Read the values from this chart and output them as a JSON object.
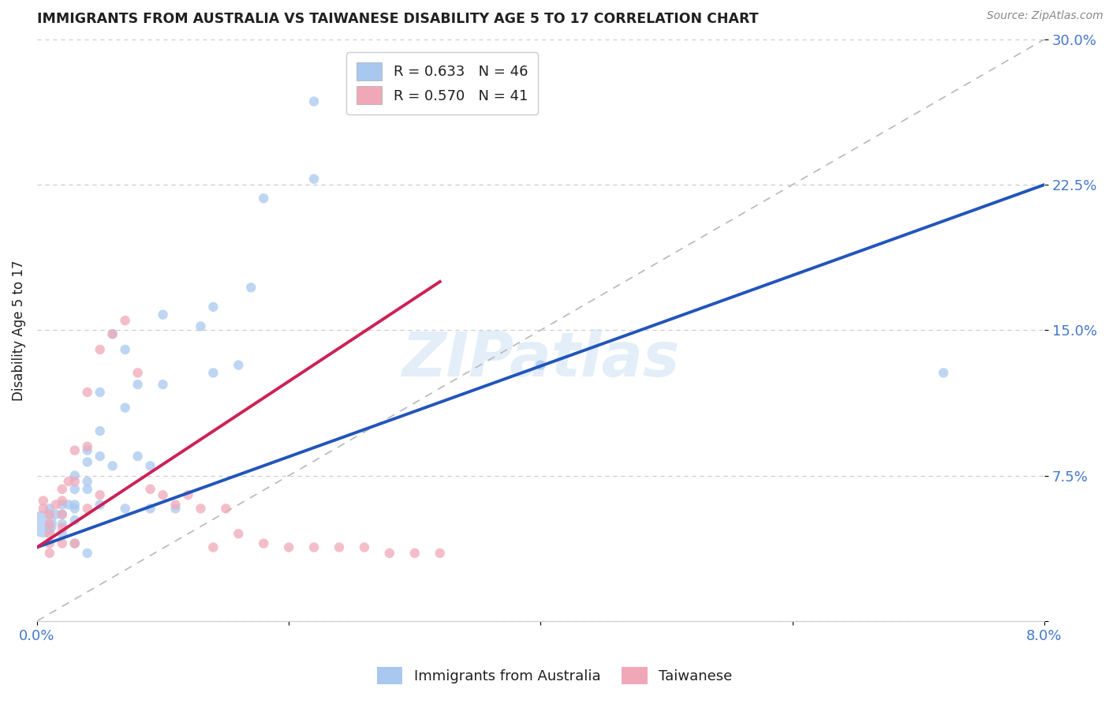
{
  "title": "IMMIGRANTS FROM AUSTRALIA VS TAIWANESE DISABILITY AGE 5 TO 17 CORRELATION CHART",
  "source": "Source: ZipAtlas.com",
  "ylabel": "Disability Age 5 to 17",
  "xlim": [
    0.0,
    0.08
  ],
  "ylim": [
    0.0,
    0.3
  ],
  "legend_r_blue": "R = 0.633",
  "legend_n_blue": "N = 46",
  "legend_r_pink": "R = 0.570",
  "legend_n_pink": "N = 41",
  "blue_color": "#a8c8f0",
  "pink_color": "#f0a8b8",
  "blue_line_color": "#2255bb",
  "pink_line_color": "#cc2255",
  "blue_line_x": [
    0.0,
    0.08
  ],
  "blue_line_y": [
    0.038,
    0.225
  ],
  "pink_line_x": [
    0.0,
    0.032
  ],
  "pink_line_y": [
    0.038,
    0.175
  ],
  "watermark": "ZIPatlas",
  "australia_x": [
    0.0005,
    0.001,
    0.001,
    0.0015,
    0.002,
    0.002,
    0.002,
    0.002,
    0.0025,
    0.003,
    0.003,
    0.003,
    0.003,
    0.003,
    0.003,
    0.004,
    0.004,
    0.004,
    0.004,
    0.004,
    0.005,
    0.005,
    0.005,
    0.005,
    0.006,
    0.006,
    0.007,
    0.007,
    0.007,
    0.008,
    0.008,
    0.009,
    0.009,
    0.01,
    0.01,
    0.011,
    0.013,
    0.014,
    0.014,
    0.016,
    0.017,
    0.018,
    0.022,
    0.022,
    0.04,
    0.072
  ],
  "australia_y": [
    0.05,
    0.048,
    0.058,
    0.055,
    0.06,
    0.05,
    0.055,
    0.045,
    0.06,
    0.075,
    0.068,
    0.058,
    0.06,
    0.052,
    0.04,
    0.088,
    0.082,
    0.068,
    0.072,
    0.035,
    0.118,
    0.098,
    0.085,
    0.06,
    0.148,
    0.08,
    0.14,
    0.11,
    0.058,
    0.122,
    0.085,
    0.08,
    0.058,
    0.158,
    0.122,
    0.058,
    0.152,
    0.162,
    0.128,
    0.132,
    0.172,
    0.218,
    0.228,
    0.268,
    0.132,
    0.128
  ],
  "australia_size": [
    600,
    80,
    80,
    80,
    80,
    80,
    80,
    80,
    80,
    80,
    80,
    80,
    80,
    80,
    80,
    80,
    80,
    80,
    80,
    80,
    80,
    80,
    80,
    80,
    80,
    80,
    80,
    80,
    80,
    80,
    80,
    80,
    80,
    80,
    80,
    80,
    80,
    80,
    80,
    80,
    80,
    80,
    80,
    80,
    80,
    80
  ],
  "taiwanese_x": [
    0.0005,
    0.0005,
    0.001,
    0.001,
    0.001,
    0.001,
    0.001,
    0.0015,
    0.002,
    0.002,
    0.002,
    0.002,
    0.002,
    0.0025,
    0.003,
    0.003,
    0.003,
    0.004,
    0.004,
    0.004,
    0.005,
    0.005,
    0.006,
    0.007,
    0.008,
    0.009,
    0.01,
    0.011,
    0.012,
    0.013,
    0.014,
    0.015,
    0.016,
    0.018,
    0.02,
    0.022,
    0.024,
    0.026,
    0.028,
    0.03,
    0.032
  ],
  "taiwanese_y": [
    0.062,
    0.058,
    0.055,
    0.05,
    0.045,
    0.04,
    0.035,
    0.06,
    0.068,
    0.062,
    0.055,
    0.048,
    0.04,
    0.072,
    0.088,
    0.072,
    0.04,
    0.118,
    0.09,
    0.058,
    0.14,
    0.065,
    0.148,
    0.155,
    0.128,
    0.068,
    0.065,
    0.06,
    0.065,
    0.058,
    0.038,
    0.058,
    0.045,
    0.04,
    0.038,
    0.038,
    0.038,
    0.038,
    0.035,
    0.035,
    0.035
  ],
  "taiwanese_size": [
    80,
    80,
    80,
    80,
    80,
    80,
    80,
    80,
    80,
    80,
    80,
    80,
    80,
    80,
    80,
    80,
    80,
    80,
    80,
    80,
    80,
    80,
    80,
    80,
    80,
    80,
    80,
    80,
    80,
    80,
    80,
    80,
    80,
    80,
    80,
    80,
    80,
    80,
    80,
    80,
    80
  ],
  "background_color": "#ffffff",
  "grid_color": "#cccccc",
  "title_color": "#202020",
  "tick_label_color": "#4477cc"
}
